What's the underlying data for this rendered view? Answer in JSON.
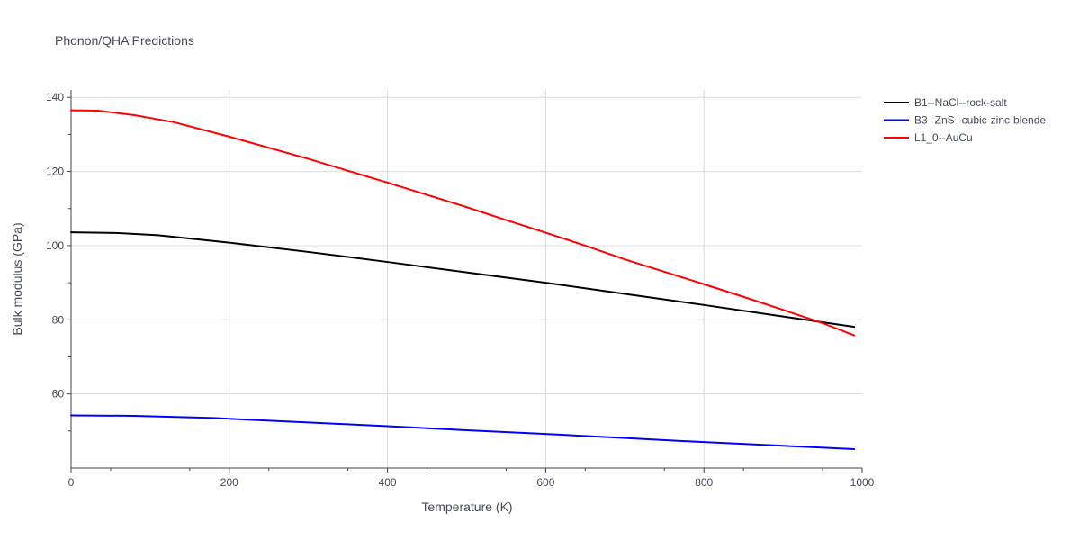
{
  "chart_data": {
    "type": "line",
    "title": "Phonon/QHA Predictions",
    "xlabel": "Temperature (K)",
    "ylabel": "Bulk modulus (GPa)",
    "xlim": [
      0,
      1000
    ],
    "ylim": [
      40,
      142
    ],
    "x_ticks": [
      0,
      200,
      400,
      600,
      800,
      1000
    ],
    "y_ticks": [
      60,
      80,
      100,
      120,
      140
    ],
    "grid": true,
    "legend_position": "top-right",
    "series": [
      {
        "name": "B1--NaCl--rock-salt",
        "color": "#000000",
        "x": [
          0,
          60,
          110,
          200,
          300,
          400,
          500,
          600,
          700,
          800,
          900,
          990
        ],
        "values": [
          103.6,
          103.4,
          102.8,
          100.8,
          98.3,
          95.6,
          92.8,
          90.0,
          87.0,
          84.0,
          80.9,
          78.1
        ]
      },
      {
        "name": "B3--ZnS--cubic-zinc-blende",
        "color": "#0000ff",
        "x": [
          0,
          80,
          180,
          300,
          400,
          500,
          600,
          700,
          800,
          900,
          990
        ],
        "values": [
          54.2,
          54.1,
          53.5,
          52.3,
          51.3,
          50.2,
          49.2,
          48.1,
          47.0,
          46.0,
          45.1
        ]
      },
      {
        "name": "L1_0--AuCu",
        "color": "#ff0000",
        "x": [
          0,
          35,
          80,
          130,
          200,
          300,
          400,
          450,
          500,
          550,
          600,
          650,
          700,
          760,
          800,
          850,
          900,
          950,
          990
        ],
        "values": [
          136.5,
          136.4,
          135.2,
          133.3,
          129.4,
          123.4,
          117.0,
          113.7,
          110.4,
          106.9,
          103.5,
          100.0,
          96.3,
          92.3,
          89.6,
          86.2,
          82.7,
          79.1,
          75.8
        ]
      }
    ]
  }
}
